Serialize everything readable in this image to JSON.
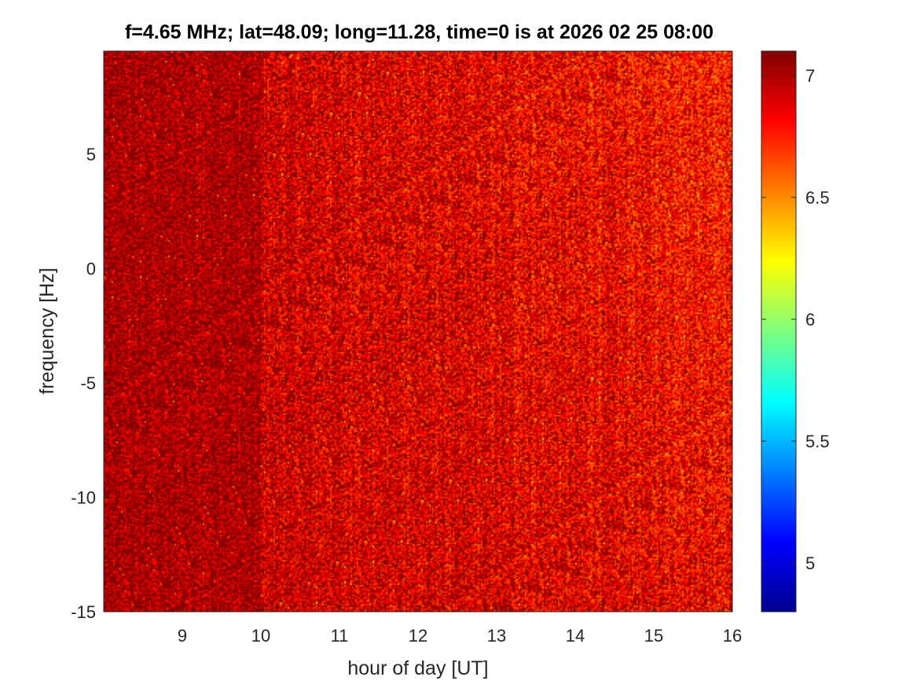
{
  "chart_data": {
    "type": "heatmap",
    "title": "f=4.65 MHz;  lat=48.09; long=11.28, time=0 is at 2026 02 25 08:00",
    "xlabel": "hour of day [UT]",
    "ylabel": "frequency [Hz]",
    "xlim": [
      8,
      16
    ],
    "ylim": [
      -15,
      9.5
    ],
    "xticks": [
      9,
      10,
      11,
      12,
      13,
      14,
      15,
      16
    ],
    "xtick_labels": [
      "9",
      "10",
      "11",
      "12",
      "13",
      "14",
      "15",
      "16"
    ],
    "yticks": [
      -15,
      -10,
      -5,
      0,
      5
    ],
    "ytick_labels": [
      "-15",
      "-10",
      "-5",
      "0",
      "5"
    ],
    "colorbar": {
      "colormap": "jet",
      "range": [
        4.8,
        7.1
      ],
      "ticks": [
        5,
        5.5,
        6,
        6.5,
        7
      ],
      "tick_labels": [
        "5",
        "5.5",
        "6",
        "6.5",
        "7"
      ]
    },
    "description_values": {
      "dominant_level": 7.0,
      "noise_min": 6.2
    }
  }
}
